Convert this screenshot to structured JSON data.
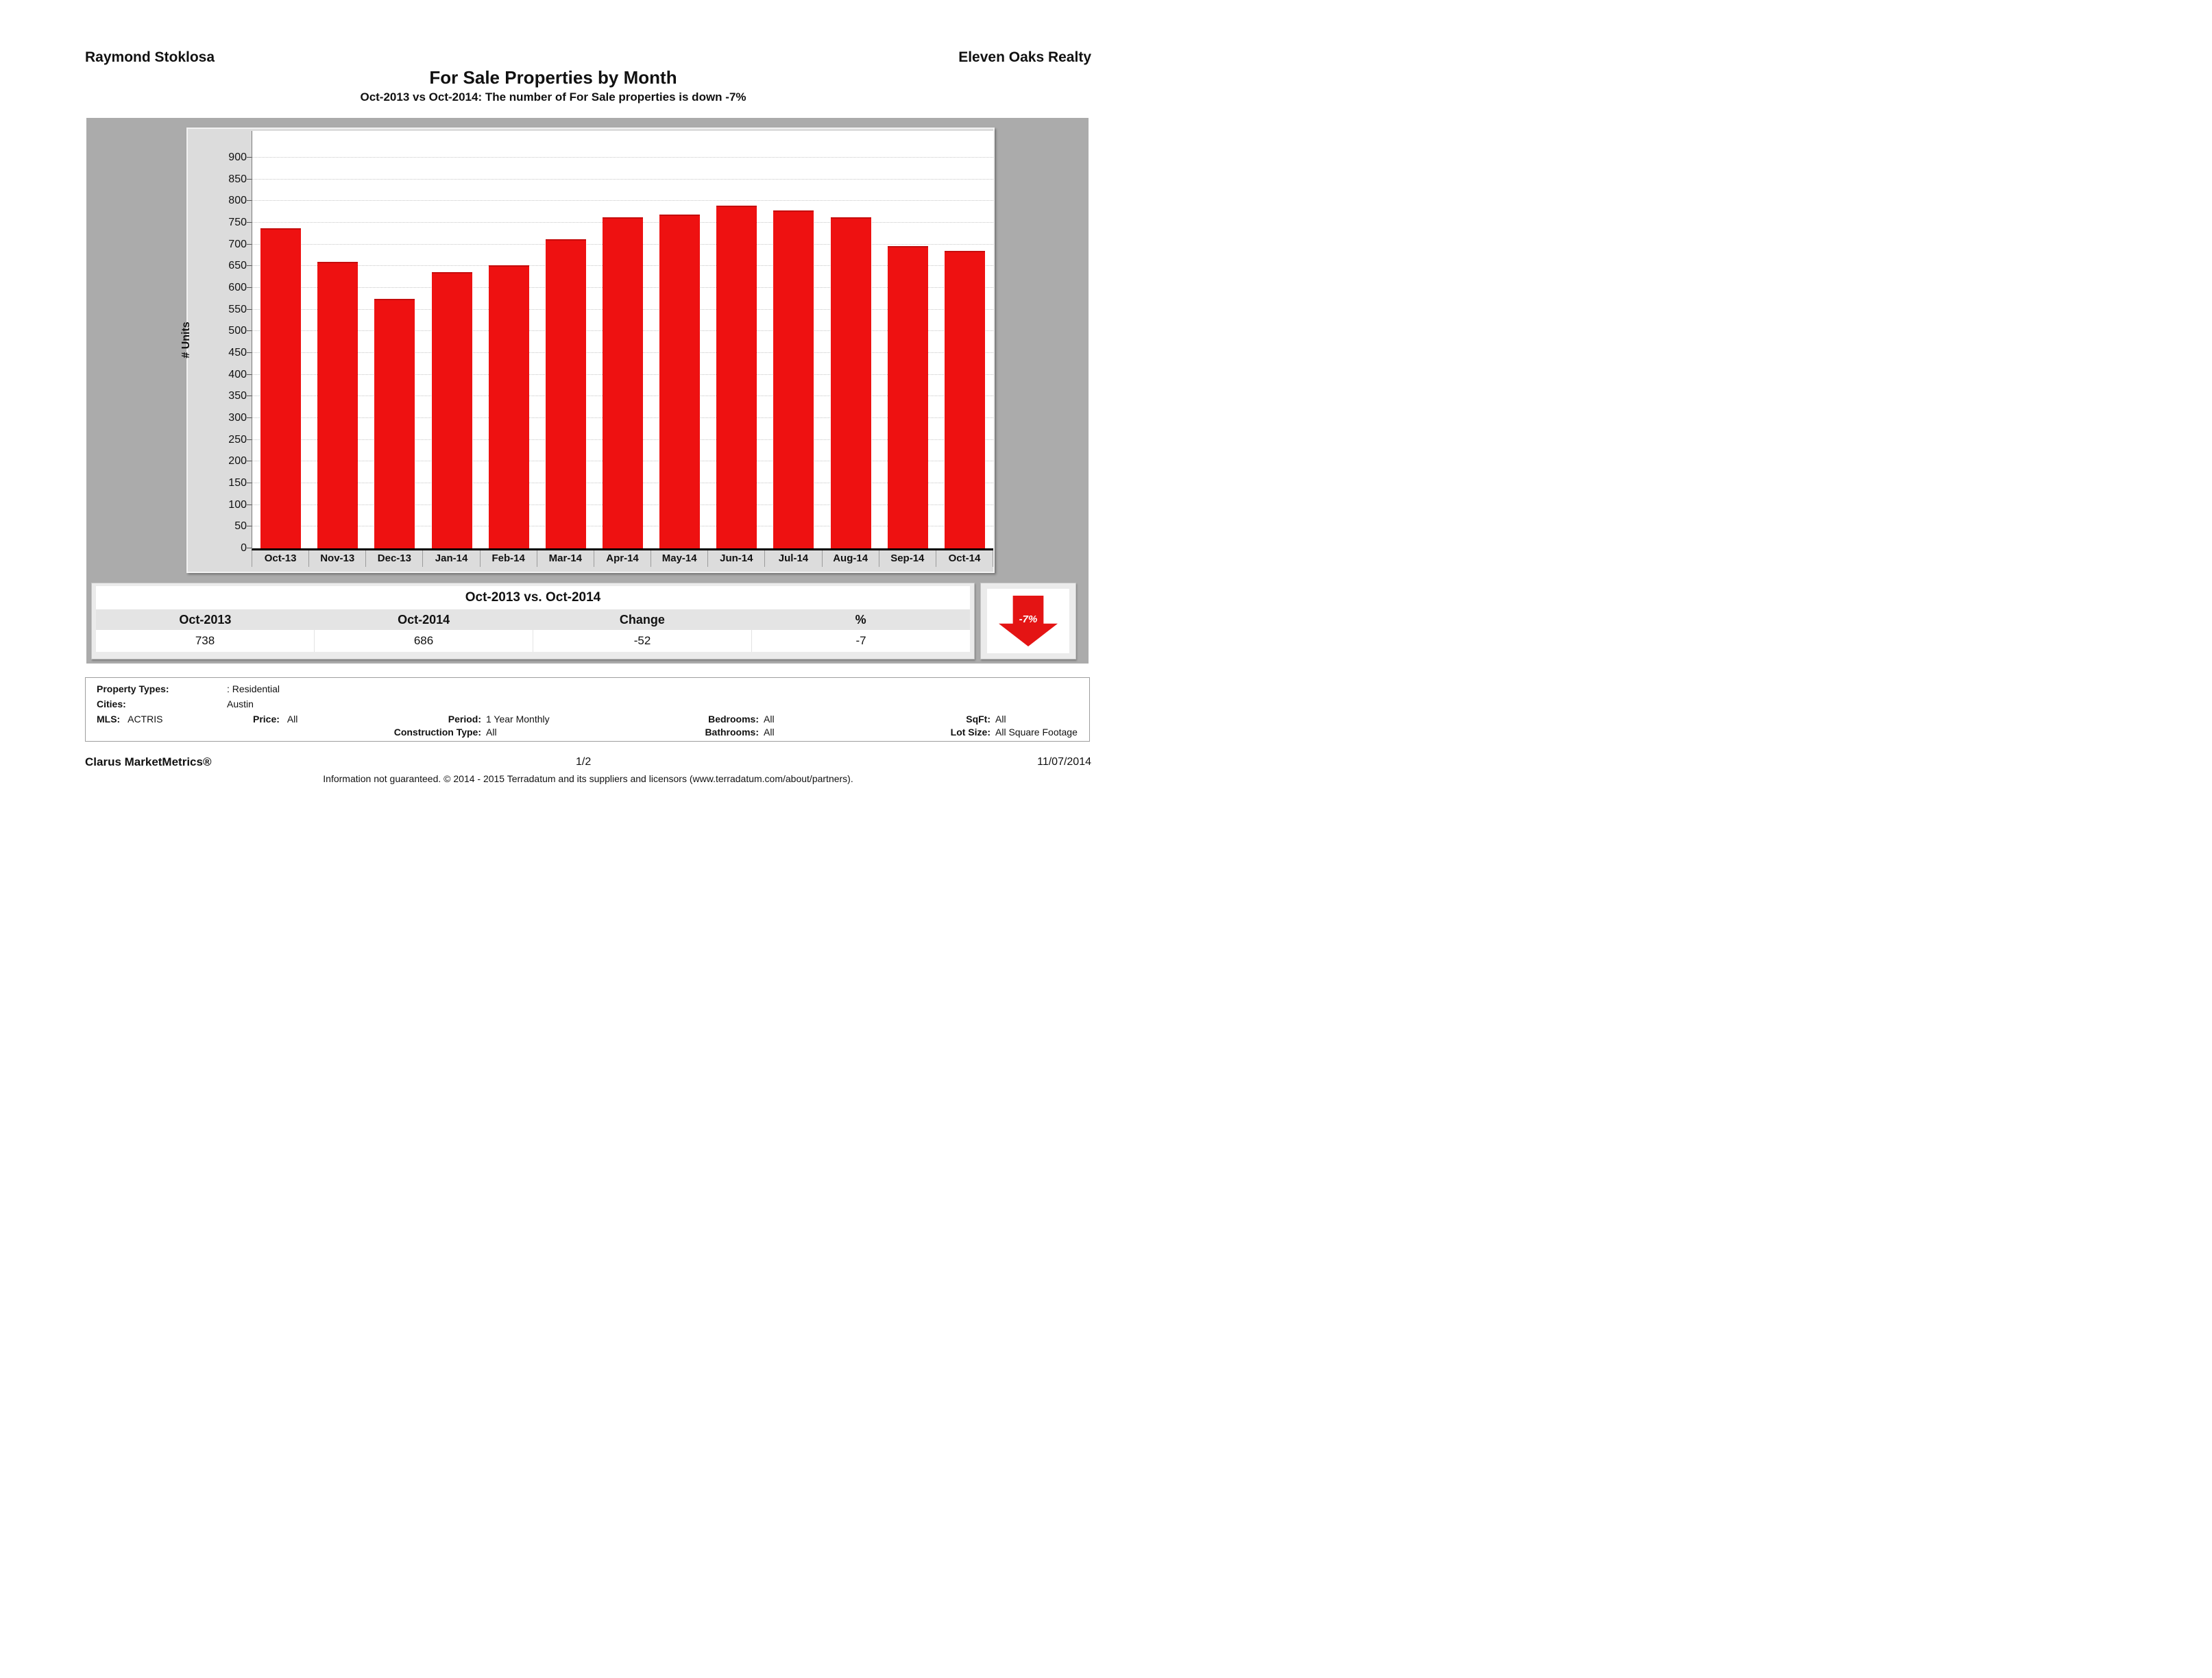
{
  "header": {
    "agent_name": "Raymond Stoklosa",
    "company_name": "Eleven Oaks Realty",
    "title": "For Sale Properties by Month",
    "subtitle": "Oct-2013 vs Oct-2014: The number of For Sale properties is down -7%"
  },
  "chart_data": {
    "type": "bar",
    "title": "For Sale Properties by Month",
    "categories": [
      "Oct-13",
      "Nov-13",
      "Dec-13",
      "Jan-14",
      "Feb-14",
      "Mar-14",
      "Apr-14",
      "May-14",
      "Jun-14",
      "Jul-14",
      "Aug-14",
      "Sep-14",
      "Oct-14"
    ],
    "values": [
      738,
      660,
      575,
      637,
      652,
      712,
      763,
      769,
      790,
      778,
      763,
      697,
      686
    ],
    "xlabel": "",
    "ylabel": "# Units",
    "ylim": [
      0,
      900
    ],
    "ytick_step": 50,
    "grid": true,
    "legend": false,
    "bar_color": "#ee1111"
  },
  "colors": {
    "accent_red": "#ee1111",
    "band_gray": "#ababab",
    "panel_gray": "#dcdcdc",
    "table_gray": "#ebebeb"
  },
  "comparison": {
    "title": "Oct-2013 vs. Oct-2014",
    "columns": [
      "Oct-2013",
      "Oct-2014",
      "Change",
      "%"
    ],
    "values": [
      "738",
      "686",
      "-52",
      "-7"
    ],
    "arrow_label": "-7%"
  },
  "filters": {
    "property_types_label": "Property Types:",
    "property_types_value": ": Residential",
    "cities_label": "Cities:",
    "cities_value": "Austin",
    "mls_label": "MLS:",
    "mls_value": "ACTRIS",
    "price_label": "Price:",
    "price_value": "All",
    "period_label": "Period:",
    "period_value": "1 Year Monthly",
    "construction_label": "Construction Type:",
    "construction_value": "All",
    "bedrooms_label": "Bedrooms:",
    "bedrooms_value": "All",
    "bathrooms_label": "Bathrooms:",
    "bathrooms_value": "All",
    "sqft_label": "SqFt:",
    "sqft_value": "All",
    "lot_size_label": "Lot Size:",
    "lot_size_value": "All Square Footage"
  },
  "footer": {
    "brand": "Clarus MarketMetrics®",
    "page": "1/2",
    "date": "11/07/2014",
    "disclaimer": "Information not guaranteed. © 2014 - 2015 Terradatum and its suppliers and licensors (www.terradatum.com/about/partners)."
  }
}
